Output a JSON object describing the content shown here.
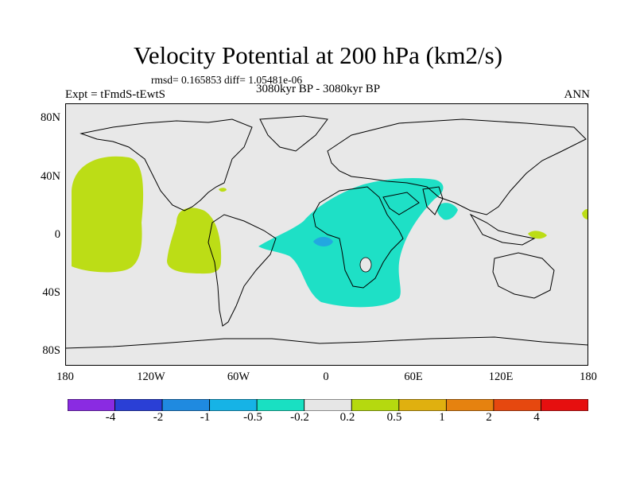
{
  "title": "Velocity Potential at 200 hPa (km2/s)",
  "stats_line": "rmsd= 0.165853 diff= 1.05481e-06",
  "left_label": "Expt = tFmdS-tEwtS",
  "center_label": "3080kyr BP - 3080kyr BP",
  "right_label": "ANN",
  "lat_ticks": [
    "80N",
    "40N",
    "0",
    "40S",
    "80S"
  ],
  "lon_ticks": [
    "180",
    "120W",
    "60W",
    "0",
    "60E",
    "120E",
    "180"
  ],
  "colorbar": {
    "colors": [
      "#8a2be2",
      "#2a3fd6",
      "#1f8ae0",
      "#16b3e6",
      "#19e0c2",
      "#e6e6e6",
      "#b5d90f",
      "#e0b00f",
      "#e6820f",
      "#e6480f",
      "#e60f0f"
    ],
    "labels": [
      "-4",
      "-2",
      "-1",
      "-0.5",
      "-0.2",
      "0.2",
      "0.5",
      "1",
      "2",
      "4"
    ]
  },
  "map_colors": {
    "background": "#e8e8e8",
    "positive": "#bcdd16",
    "negative": "#1ee0c6",
    "strong_negative": "#22a8e0",
    "coast": "#000000"
  }
}
